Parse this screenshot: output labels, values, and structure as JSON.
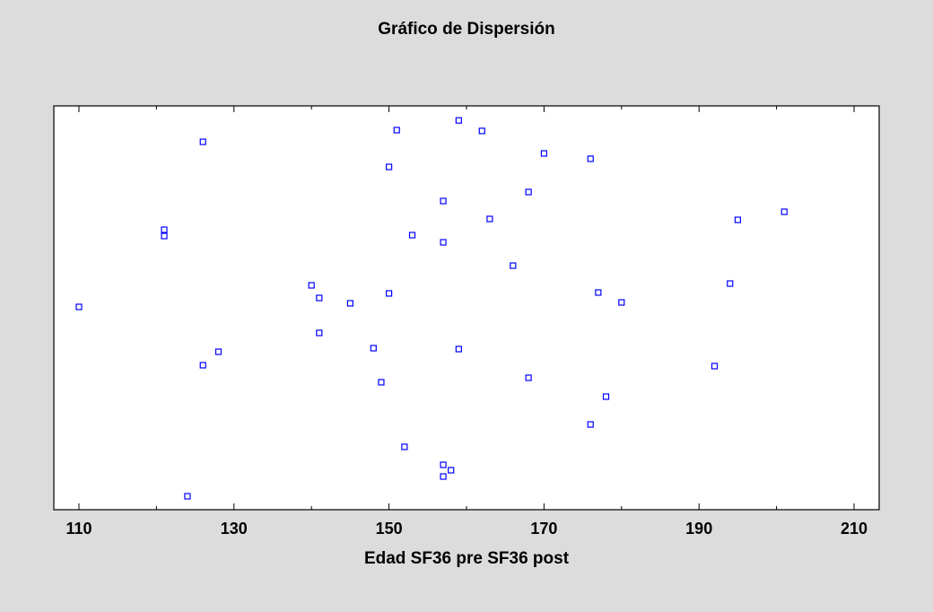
{
  "chart_data": {
    "type": "scatter",
    "title": "Gráfico de Dispersión",
    "x_label": "Edad SF36 pre SF36 post",
    "x": [
      159,
      151,
      162,
      126,
      150,
      170,
      176,
      168,
      157,
      163,
      195,
      201,
      121,
      121,
      153,
      157,
      166,
      140,
      141,
      145,
      150,
      177,
      180,
      194,
      110,
      141,
      148,
      159,
      128,
      126,
      192,
      149,
      168,
      178,
      176,
      152,
      157,
      158,
      157,
      124
    ],
    "color": "#0000ff",
    "xlim": [
      106.76,
      213.24
    ],
    "xticks": [
      110,
      130,
      150,
      170,
      190,
      210
    ],
    "minor_xticks": [
      120,
      140,
      160,
      180,
      200
    ]
  }
}
